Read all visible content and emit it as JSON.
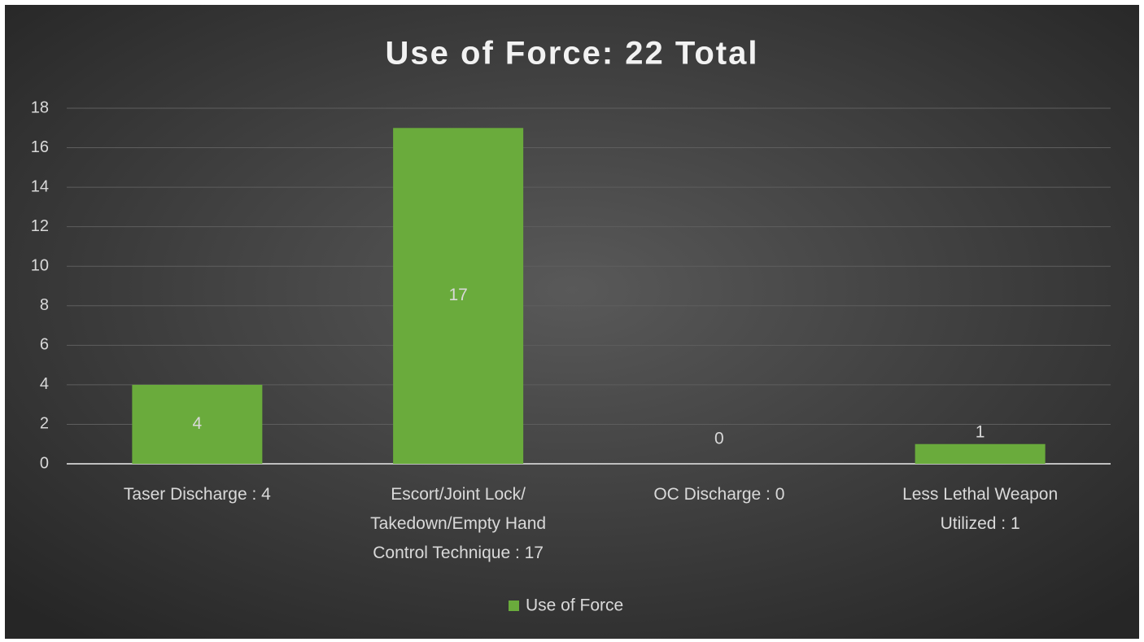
{
  "chart_data": {
    "type": "bar",
    "title": "Use of Force: 22 Total",
    "categories": [
      "Taser Discharge : 4",
      "Escort/Joint Lock/ Takedown/Empty Hand Control Technique : 17",
      "OC Discharge : 0",
      "Less Lethal Weapon Utilized : 1"
    ],
    "series": [
      {
        "name": "Use of Force",
        "color": "#6aab3c",
        "values": [
          4,
          17,
          0,
          1
        ]
      }
    ],
    "ylim": [
      0,
      18
    ],
    "yticks": [
      0,
      2,
      4,
      6,
      8,
      10,
      12,
      14,
      16,
      18
    ],
    "grid": true,
    "legend": "bottom"
  }
}
